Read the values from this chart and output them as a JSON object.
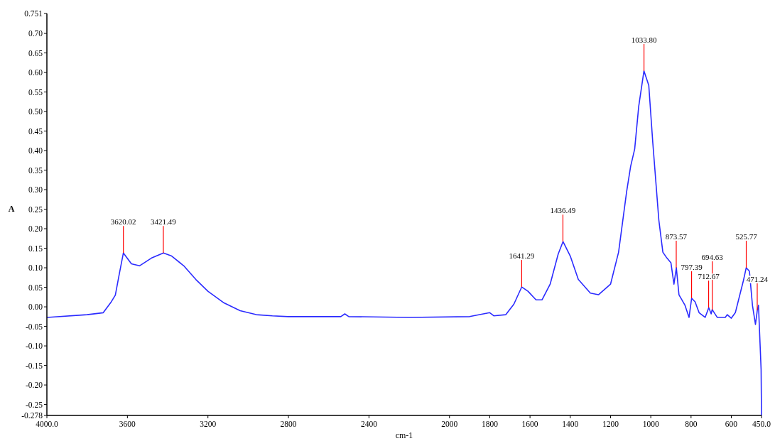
{
  "chart_data": {
    "type": "line",
    "xlabel": "cm-1",
    "ylabel": "A",
    "xlim": [
      4000,
      450
    ],
    "ylim": [
      -0.278,
      0.751
    ],
    "xticks": [
      {
        "value": 4000,
        "label": "4000.0"
      },
      3600,
      3200,
      2800,
      2400,
      2000,
      1800,
      1600,
      1400,
      1200,
      1000,
      800,
      600,
      {
        "value": 450,
        "label": "450.0"
      }
    ],
    "yticks": [
      -0.278,
      {
        "value": -0.25,
        "label": "-0.25"
      },
      {
        "value": -0.2,
        "label": "-0.20"
      },
      {
        "value": -0.15,
        "label": "-0.15"
      },
      {
        "value": -0.1,
        "label": "-0.10"
      },
      {
        "value": -0.05,
        "label": "-0.05"
      },
      {
        "value": 0,
        "label": "0.00"
      },
      {
        "value": 0.05,
        "label": "0.05"
      },
      {
        "value": 0.1,
        "label": "0.10"
      },
      {
        "value": 0.15,
        "label": "0.15"
      },
      {
        "value": 0.2,
        "label": "0.20"
      },
      {
        "value": 0.25,
        "label": "0.25"
      },
      {
        "value": 0.3,
        "label": "0.30"
      },
      {
        "value": 0.35,
        "label": "0.35"
      },
      {
        "value": 0.4,
        "label": "0.40"
      },
      {
        "value": 0.45,
        "label": "0.45"
      },
      {
        "value": 0.5,
        "label": "0.50"
      },
      {
        "value": 0.55,
        "label": "0.55"
      },
      {
        "value": 0.6,
        "label": "0.60"
      },
      {
        "value": 0.65,
        "label": "0.65"
      },
      {
        "value": 0.7,
        "label": "0.70"
      },
      0.751
    ],
    "grid": false,
    "line_style": "solid",
    "marker": "none",
    "series": [
      {
        "color": "#2b2bff",
        "x": [
          4000,
          3800,
          3720,
          3680,
          3660,
          3640,
          3620,
          3580,
          3540,
          3480,
          3421,
          3380,
          3320,
          3260,
          3200,
          3120,
          3040,
          2960,
          2880,
          2800,
          2540,
          2520,
          2500,
          2200,
          1900,
          1800,
          1780,
          1720,
          1680,
          1641,
          1610,
          1570,
          1540,
          1500,
          1460,
          1436,
          1400,
          1360,
          1300,
          1260,
          1200,
          1160,
          1120,
          1100,
          1080,
          1060,
          1034,
          1010,
          990,
          960,
          940,
          920,
          900,
          885,
          873,
          860,
          830,
          810,
          797,
          780,
          760,
          730,
          712,
          700,
          695,
          670,
          630,
          620,
          600,
          580,
          540,
          526,
          510,
          495,
          480,
          471,
          465,
          452,
          450
        ],
        "values": [
          -0.027,
          -0.02,
          -0.015,
          0.013,
          0.03,
          0.085,
          0.138,
          0.11,
          0.105,
          0.125,
          0.138,
          0.13,
          0.105,
          0.07,
          0.04,
          0.01,
          -0.01,
          -0.02,
          -0.023,
          -0.025,
          -0.025,
          -0.018,
          -0.025,
          -0.027,
          -0.025,
          -0.015,
          -0.023,
          -0.02,
          0.007,
          0.051,
          0.04,
          0.018,
          0.018,
          0.058,
          0.135,
          0.167,
          0.13,
          0.07,
          0.035,
          0.031,
          0.058,
          0.14,
          0.295,
          0.36,
          0.404,
          0.513,
          0.604,
          0.567,
          0.42,
          0.222,
          0.14,
          0.125,
          0.113,
          0.058,
          0.1,
          0.031,
          0.004,
          -0.027,
          0.022,
          0.013,
          -0.015,
          -0.027,
          -0.002,
          -0.018,
          -0.007,
          -0.027,
          -0.027,
          -0.02,
          -0.029,
          -0.015,
          0.067,
          0.1,
          0.091,
          0.004,
          -0.045,
          -0.009,
          0.004,
          -0.16,
          -0.278
        ]
      }
    ],
    "annotations": [
      {
        "text": "3620.02",
        "x": 3620.02,
        "y": 0.138
      },
      {
        "text": "3421.49",
        "x": 3421.49,
        "y": 0.138
      },
      {
        "text": "1641.29",
        "x": 1641.29,
        "y": 0.051
      },
      {
        "text": "1436.49",
        "x": 1436.49,
        "y": 0.167
      },
      {
        "text": "1033.80",
        "x": 1033.8,
        "y": 0.604
      },
      {
        "text": "873.57",
        "x": 873.57,
        "y": 0.1
      },
      {
        "text": "797.39",
        "x": 797.39,
        "y": 0.022
      },
      {
        "text": "712.67",
        "x": 712.67,
        "y": -0.002
      },
      {
        "text": "694.63",
        "x": 694.63,
        "y": -0.007
      },
      {
        "text": "525.77",
        "x": 525.77,
        "y": 0.1
      },
      {
        "text": "471.24",
        "x": 471.24,
        "y": -0.009
      }
    ]
  }
}
